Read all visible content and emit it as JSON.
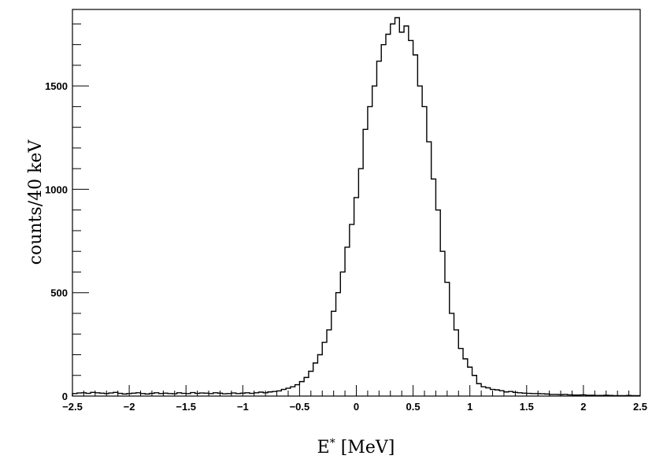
{
  "chart_data": {
    "type": "histogram",
    "xlabel_base": "E",
    "xlabel_sup": "*",
    "xlabel_unit": " [MeV]",
    "ylabel": "counts/40 keV",
    "xlim": [
      -2.5,
      2.5
    ],
    "ylim": [
      0,
      1870
    ],
    "bin_width": 0.04,
    "x_major_ticks": [
      "−2.5",
      "−2",
      "−1.5",
      "−1",
      "−0.5",
      "0",
      "0.5",
      "1",
      "1.5",
      "2",
      "2.5"
    ],
    "x_major_tick_values": [
      -2.5,
      -2,
      -1.5,
      -1,
      -0.5,
      0,
      0.5,
      1,
      1.5,
      2,
      2.5
    ],
    "y_major_ticks": [
      "0",
      "500",
      "1000",
      "1500"
    ],
    "y_major_tick_values": [
      0,
      500,
      1000,
      1500
    ],
    "grid": false,
    "line_color": "#000000",
    "bins_x_start": [
      -2.5,
      -2.46,
      -2.42,
      -2.38,
      -2.34,
      -2.3,
      -2.26,
      -2.22,
      -2.18,
      -2.14,
      -2.1,
      -2.06,
      -2.02,
      -1.98,
      -1.94,
      -1.9,
      -1.86,
      -1.82,
      -1.78,
      -1.74,
      -1.7,
      -1.66,
      -1.62,
      -1.58,
      -1.54,
      -1.5,
      -1.46,
      -1.42,
      -1.38,
      -1.34,
      -1.3,
      -1.26,
      -1.22,
      -1.18,
      -1.14,
      -1.1,
      -1.06,
      -1.02,
      -0.98,
      -0.94,
      -0.9,
      -0.86,
      -0.82,
      -0.78,
      -0.74,
      -0.7,
      -0.66,
      -0.62,
      -0.58,
      -0.54,
      -0.5,
      -0.46,
      -0.42,
      -0.38,
      -0.34,
      -0.3,
      -0.26,
      -0.22,
      -0.18,
      -0.14,
      -0.1,
      -0.06,
      -0.02,
      0.02,
      0.06,
      0.1,
      0.14,
      0.18,
      0.22,
      0.26,
      0.3,
      0.34,
      0.38,
      0.42,
      0.46,
      0.5,
      0.54,
      0.58,
      0.62,
      0.66,
      0.7,
      0.74,
      0.78,
      0.82,
      0.86,
      0.9,
      0.94,
      0.98,
      1.02,
      1.06,
      1.1,
      1.14,
      1.18,
      1.22,
      1.26,
      1.3,
      1.34,
      1.38,
      1.42,
      1.46,
      1.5,
      1.54,
      1.58,
      1.62,
      1.66,
      1.7,
      1.74,
      1.78,
      1.82,
      1.86,
      1.9,
      1.94,
      1.98,
      2.02,
      2.06,
      2.1,
      2.14,
      2.18,
      2.22,
      2.26,
      2.3,
      2.34,
      2.38,
      2.42,
      2.46
    ],
    "counts": [
      12,
      15,
      16,
      13,
      18,
      16,
      14,
      12,
      15,
      18,
      13,
      10,
      12,
      14,
      16,
      12,
      10,
      13,
      16,
      12,
      14,
      12,
      11,
      16,
      13,
      12,
      17,
      13,
      15,
      14,
      12,
      16,
      14,
      11,
      12,
      15,
      12,
      14,
      16,
      13,
      16,
      19,
      16,
      20,
      22,
      25,
      32,
      38,
      45,
      55,
      70,
      90,
      120,
      160,
      200,
      260,
      320,
      410,
      500,
      600,
      720,
      830,
      960,
      1100,
      1290,
      1400,
      1500,
      1620,
      1700,
      1750,
      1800,
      1830,
      1760,
      1790,
      1720,
      1650,
      1500,
      1400,
      1230,
      1050,
      900,
      700,
      550,
      400,
      320,
      230,
      180,
      140,
      100,
      60,
      45,
      40,
      32,
      30,
      26,
      20,
      22,
      18,
      16,
      14,
      13,
      12,
      12,
      11,
      10,
      8,
      8,
      7,
      8,
      6,
      5,
      5,
      6,
      4,
      4,
      3,
      3,
      4,
      3,
      2,
      2,
      2,
      3,
      2,
      2
    ]
  }
}
